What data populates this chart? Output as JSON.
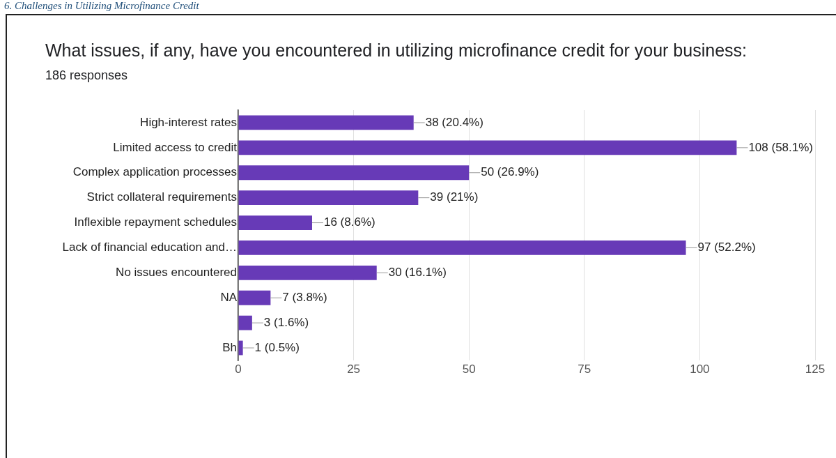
{
  "chart_data": {
    "type": "bar",
    "orientation": "horizontal",
    "title": "What issues, if any, have you encountered in utilizing microfinance credit for your business:",
    "subtitle": "186 responses",
    "annotations": [
      "6. Challenges in Utilizing Microfinance Credit"
    ],
    "categories": [
      "High-interest rates",
      "Limited access to credit",
      "Complex application processes",
      "Strict collateral requirements",
      "Inflexible repayment schedules",
      "Lack of financial education and…",
      "No issues encountered",
      "NA",
      null,
      "Bh"
    ],
    "values": [
      38,
      108,
      50,
      39,
      16,
      97,
      30,
      7,
      3,
      1
    ],
    "value_labels": [
      "38 (20.4%)",
      "108 (58.1%)",
      "50 (26.9%)",
      "39 (21%)",
      "16 (8.6%)",
      "97 (52.2%)",
      "30 (16.1%)",
      "7 (3.8%)",
      "3 (1.6%)",
      "1 (0.5%)"
    ],
    "color": "#673ab7",
    "xlim": [
      0,
      125
    ],
    "xticks": [
      0,
      25,
      50,
      75,
      100,
      125
    ],
    "grid": "x",
    "legend": false
  }
}
